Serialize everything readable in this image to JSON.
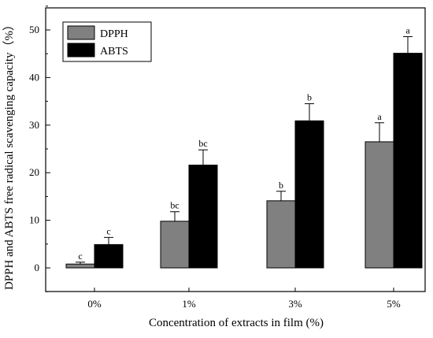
{
  "chart_data": {
    "type": "bar",
    "title": "",
    "xlabel": "Concentration of extracts in film (%)",
    "ylabel": "DPPH and ABTS free radical scavenging capacity（%）",
    "categories": [
      "0%",
      "1%",
      "3%",
      "5%"
    ],
    "ylim": [
      -5,
      55
    ],
    "yticks": [
      0,
      10,
      20,
      30,
      40,
      50
    ],
    "grid": false,
    "legend_position": "top-left",
    "series": [
      {
        "name": "DPPH",
        "color": "#808080",
        "values": [
          0.8,
          9.8,
          14.1,
          26.5
        ],
        "errors": [
          0.4,
          2.0,
          2.0,
          4.0
        ],
        "labels": [
          "c",
          "bc",
          "b",
          "a"
        ]
      },
      {
        "name": "ABTS",
        "color": "#000000",
        "values": [
          4.9,
          21.6,
          30.9,
          45.1
        ],
        "errors": [
          1.5,
          3.2,
          3.6,
          3.5
        ],
        "labels": [
          "c",
          "bc",
          "b",
          "a"
        ]
      }
    ]
  }
}
